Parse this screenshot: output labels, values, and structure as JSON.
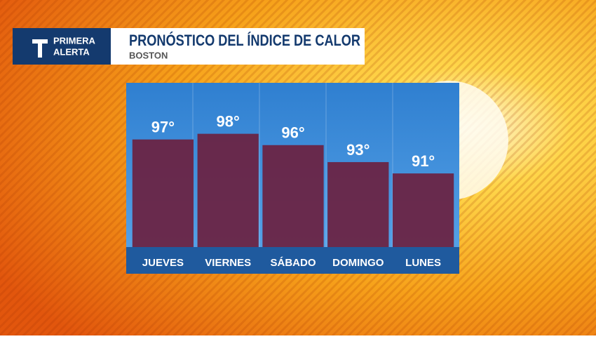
{
  "brand": [
    "PRIMERA",
    "ALERTA"
  ],
  "chart_data": {
    "type": "bar",
    "title": "PRONÓSTICO DEL ÍNDICE DE CALOR",
    "subtitle": "BOSTON",
    "categories": [
      "JUEVES",
      "VIERNES",
      "SÁBADO",
      "DOMINGO",
      "LUNES"
    ],
    "values": [
      97,
      98,
      96,
      93,
      91
    ],
    "value_labels": [
      "97°",
      "98°",
      "96°",
      "93°",
      "91°"
    ],
    "color": "#6b2140",
    "ylim": [
      78,
      107
    ]
  }
}
